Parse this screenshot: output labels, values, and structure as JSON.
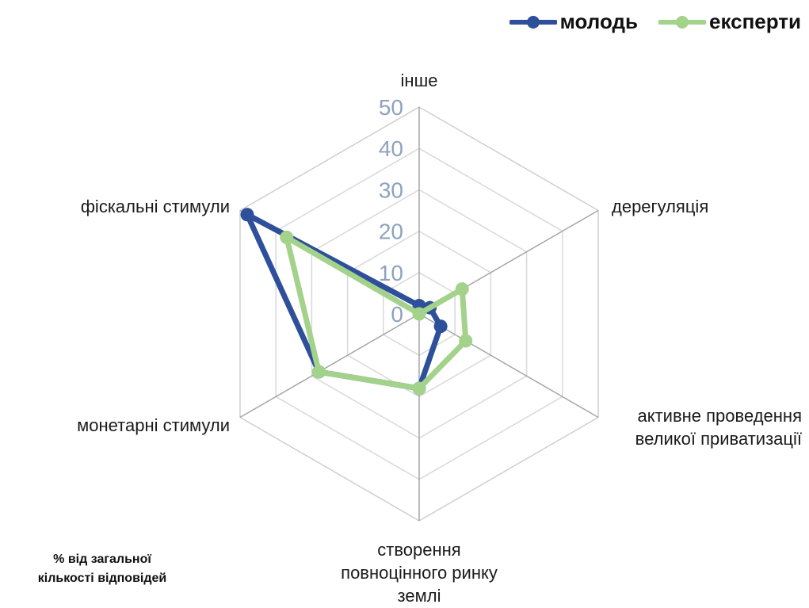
{
  "chart_data": {
    "type": "radar",
    "categories": [
      "інше",
      "дерегуляція",
      "активне проведення великої приватизації",
      "створення повноцінного ринку землі",
      "монетарні стимули",
      "фіскальні стимули"
    ],
    "category_lines": [
      [
        "інше"
      ],
      [
        "дерегуляція"
      ],
      [
        "активне проведення",
        "великої приватизації"
      ],
      [
        "створення",
        "повноцінного ринку",
        "землі"
      ],
      [
        "монетарні стимули"
      ],
      [
        "фіскальні стимули"
      ]
    ],
    "series": [
      {
        "name": "молодь",
        "color": "#2e4f9a",
        "values": [
          2,
          3,
          6,
          18,
          28,
          48
        ]
      },
      {
        "name": "експерти",
        "color": "#a3d28a",
        "values": [
          0,
          12,
          13,
          18,
          28,
          37
        ]
      }
    ],
    "r_ticks": [
      "0",
      "10",
      "20",
      "30",
      "40",
      "50"
    ],
    "rlim": [
      0,
      50
    ],
    "legend_position": "top-right",
    "grid": true,
    "footnote_lines": [
      "% від загальної",
      "кількості відповідей"
    ]
  }
}
